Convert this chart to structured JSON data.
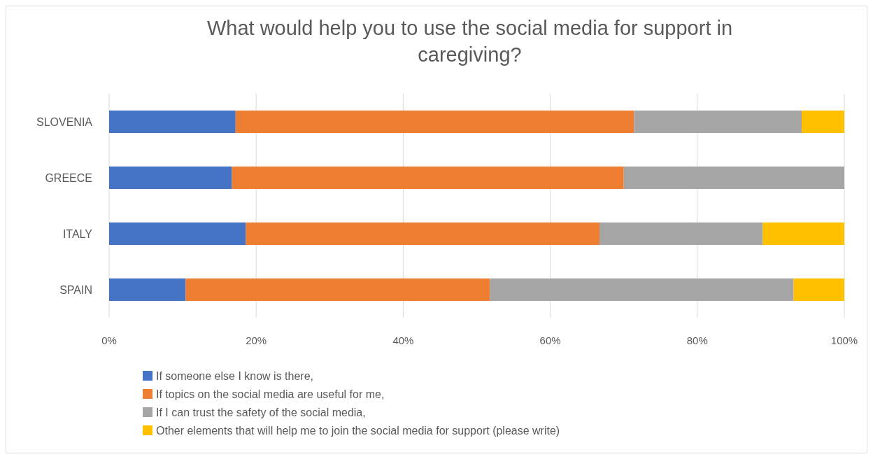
{
  "chart_data": {
    "type": "bar",
    "orientation": "horizontal",
    "stacked": true,
    "title": "What would help you to use the social media for support in caregiving?",
    "categories": [
      "SLOVENIA",
      "GREECE",
      "ITALY",
      "SPAIN"
    ],
    "series": [
      {
        "name": "If someone else I know is there,",
        "color": "#4472c4",
        "values": [
          17.2,
          16.7,
          18.6,
          10.4
        ]
      },
      {
        "name": "If topics on the social media are useful for me,",
        "color": "#ed7d31",
        "values": [
          54.2,
          53.3,
          48.1,
          41.4
        ]
      },
      {
        "name": "If I can trust the safety of the social media,",
        "color": "#a5a5a5",
        "values": [
          22.8,
          30.0,
          22.2,
          41.3
        ]
      },
      {
        "name": "Other elements that will help me to join the social media for support (please write)",
        "color": "#ffc000",
        "values": [
          5.8,
          0,
          11.1,
          6.9
        ]
      }
    ],
    "xlim": [
      0,
      100
    ],
    "xticks": [
      {
        "value": 0,
        "label": "0%"
      },
      {
        "value": 20,
        "label": "20%"
      },
      {
        "value": 40,
        "label": "40%"
      },
      {
        "value": 60,
        "label": "60%"
      },
      {
        "value": 80,
        "label": "80%"
      },
      {
        "value": 100,
        "label": "100%"
      }
    ],
    "grid": "x",
    "legend": "bottom"
  }
}
